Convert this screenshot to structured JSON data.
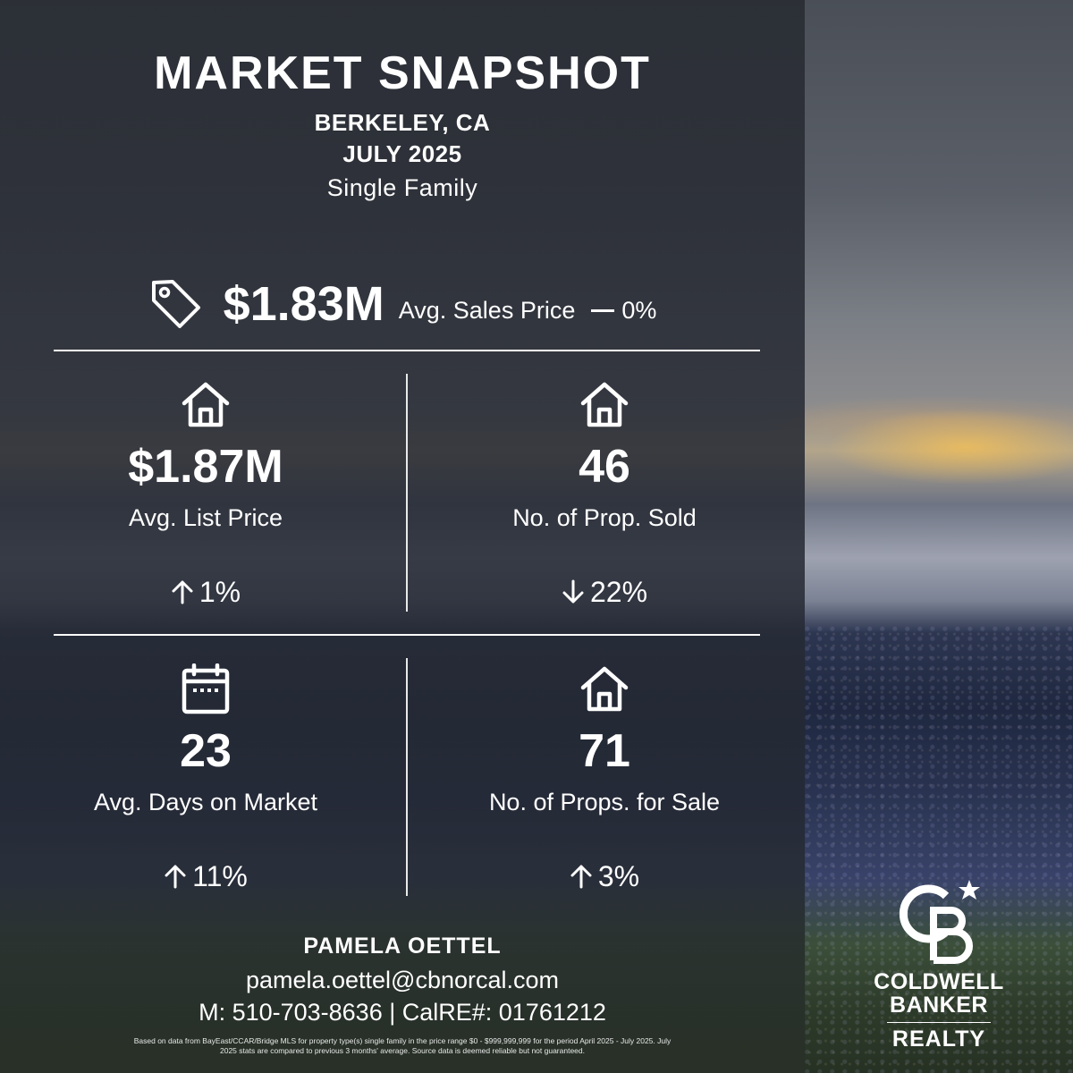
{
  "header": {
    "title": "MARKET SNAPSHOT",
    "location": "BERKELEY, CA",
    "period": "JULY 2025",
    "property_type": "Single Family"
  },
  "headline": {
    "value": "$1.83M",
    "label": "Avg. Sales Price",
    "change": "0%",
    "change_direction": "flat",
    "icon": "price-tag-icon"
  },
  "stats": [
    {
      "value": "$1.87M",
      "label": "Avg. List Price",
      "change": "1%",
      "change_direction": "up",
      "icon": "house-icon"
    },
    {
      "value": "46",
      "label": "No. of Prop. Sold",
      "change": "22%",
      "change_direction": "down",
      "icon": "house-icon"
    },
    {
      "value": "23",
      "label": "Avg. Days on Market",
      "change": "11%",
      "change_direction": "up",
      "icon": "calendar-icon"
    },
    {
      "value": "71",
      "label": "No. of Props. for Sale",
      "change": "3%",
      "change_direction": "up",
      "icon": "house-icon"
    }
  ],
  "agent": {
    "name": "PAMELA OETTEL",
    "email": "pamela.oettel@cbnorcal.com",
    "phone_line": "M: 510-703-8636 | CalRE#: 01761212"
  },
  "disclaimer": "Based on data from BayEast/CCAR/Bridge MLS for property type(s) single family in the price range $0 - $999,999,999 for the period April 2025 - July 2025. July 2025 stats are compared to previous 3 months' average. Source data is deemed reliable but not guaranteed.",
  "logo": {
    "line1": "COLDWELL",
    "line2": "BANKER",
    "line3": "REALTY",
    "icon": "coldwell-banker-cb-logo"
  },
  "colors": {
    "text": "#ffffff",
    "panel_overlay": "#2a2d34"
  }
}
